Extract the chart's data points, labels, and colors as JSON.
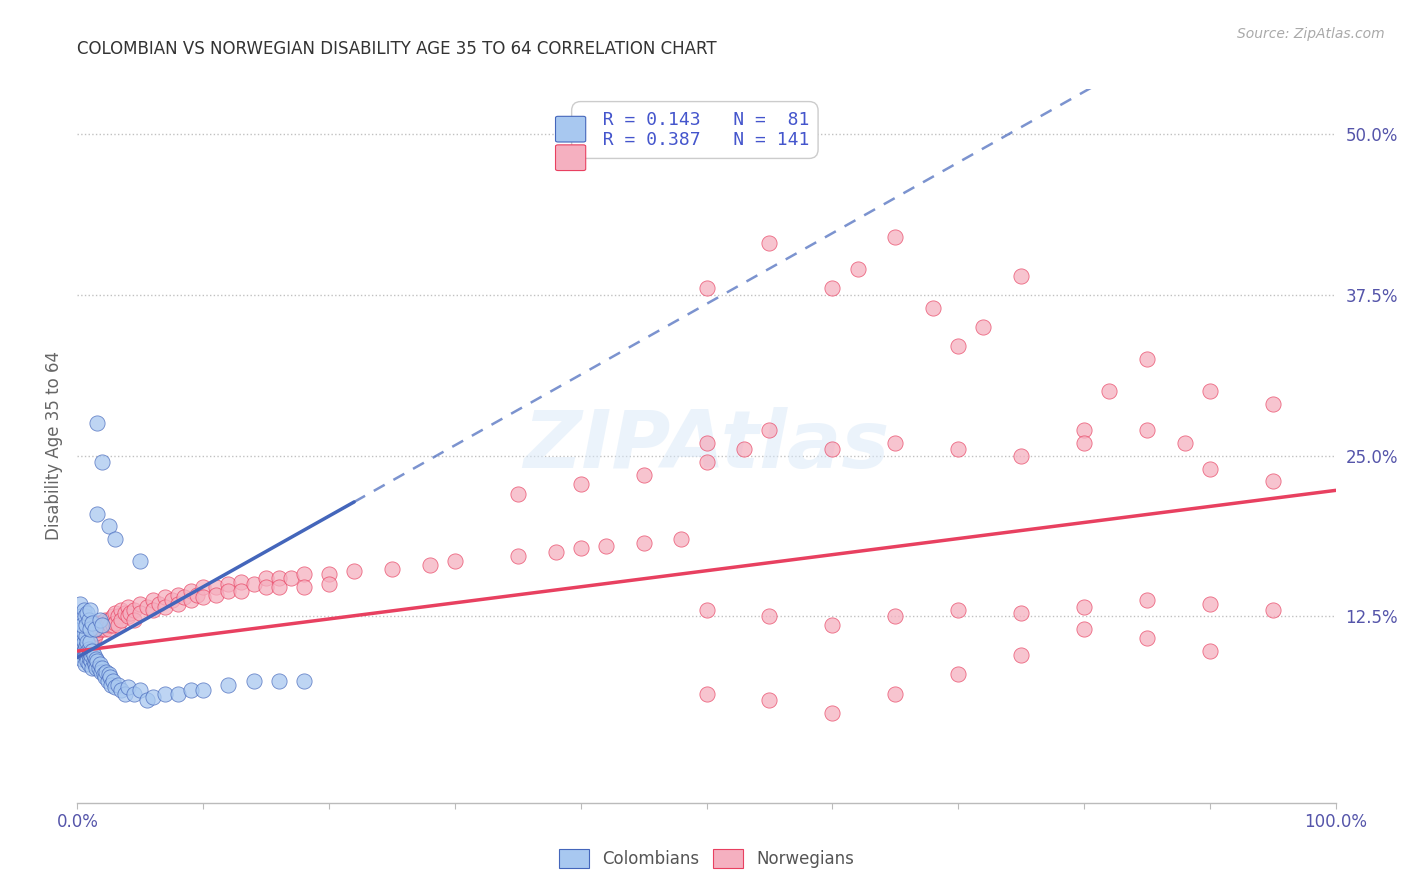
{
  "title": "COLOMBIAN VS NORWEGIAN DISABILITY AGE 35 TO 64 CORRELATION CHART",
  "source": "Source: ZipAtlas.com",
  "ylabel": "Disability Age 35 to 64",
  "yticks_labels": [
    "12.5%",
    "25.0%",
    "37.5%",
    "50.0%"
  ],
  "ytick_vals": [
    0.125,
    0.25,
    0.375,
    0.5
  ],
  "xlim": [
    0.0,
    1.0
  ],
  "ylim": [
    -0.02,
    0.535
  ],
  "colombian_color": "#A8C8F0",
  "norwegian_color": "#F5B0C0",
  "trendline_col_color": "#4466BB",
  "trendline_nor_color": "#E84060",
  "background_color": "#FFFFFF",
  "watermark": "ZIPAtlas",
  "colombian_points": [
    [
      0.001,
      0.115
    ],
    [
      0.002,
      0.12
    ],
    [
      0.002,
      0.105
    ],
    [
      0.003,
      0.11
    ],
    [
      0.003,
      0.095
    ],
    [
      0.003,
      0.115
    ],
    [
      0.004,
      0.1
    ],
    [
      0.004,
      0.108
    ],
    [
      0.004,
      0.092
    ],
    [
      0.005,
      0.098
    ],
    [
      0.005,
      0.105
    ],
    [
      0.005,
      0.112
    ],
    [
      0.006,
      0.095
    ],
    [
      0.006,
      0.1
    ],
    [
      0.006,
      0.088
    ],
    [
      0.007,
      0.102
    ],
    [
      0.007,
      0.095
    ],
    [
      0.007,
      0.11
    ],
    [
      0.008,
      0.098
    ],
    [
      0.008,
      0.09
    ],
    [
      0.008,
      0.105
    ],
    [
      0.009,
      0.095
    ],
    [
      0.009,
      0.1
    ],
    [
      0.009,
      0.088
    ],
    [
      0.01,
      0.092
    ],
    [
      0.01,
      0.098
    ],
    [
      0.01,
      0.105
    ],
    [
      0.011,
      0.09
    ],
    [
      0.011,
      0.095
    ],
    [
      0.012,
      0.098
    ],
    [
      0.012,
      0.085
    ],
    [
      0.013,
      0.09
    ],
    [
      0.013,
      0.095
    ],
    [
      0.014,
      0.088
    ],
    [
      0.015,
      0.092
    ],
    [
      0.015,
      0.085
    ],
    [
      0.016,
      0.09
    ],
    [
      0.017,
      0.085
    ],
    [
      0.018,
      0.088
    ],
    [
      0.019,
      0.082
    ],
    [
      0.02,
      0.085
    ],
    [
      0.021,
      0.08
    ],
    [
      0.022,
      0.078
    ],
    [
      0.023,
      0.082
    ],
    [
      0.024,
      0.075
    ],
    [
      0.025,
      0.08
    ],
    [
      0.026,
      0.078
    ],
    [
      0.027,
      0.072
    ],
    [
      0.028,
      0.075
    ],
    [
      0.03,
      0.07
    ],
    [
      0.032,
      0.072
    ],
    [
      0.035,
      0.068
    ],
    [
      0.038,
      0.065
    ],
    [
      0.04,
      0.07
    ],
    [
      0.045,
      0.065
    ],
    [
      0.05,
      0.068
    ],
    [
      0.055,
      0.06
    ],
    [
      0.06,
      0.062
    ],
    [
      0.07,
      0.065
    ],
    [
      0.08,
      0.065
    ],
    [
      0.09,
      0.068
    ],
    [
      0.1,
      0.068
    ],
    [
      0.12,
      0.072
    ],
    [
      0.14,
      0.075
    ],
    [
      0.16,
      0.075
    ],
    [
      0.18,
      0.075
    ],
    [
      0.002,
      0.135
    ],
    [
      0.003,
      0.125
    ],
    [
      0.004,
      0.118
    ],
    [
      0.005,
      0.13
    ],
    [
      0.006,
      0.125
    ],
    [
      0.007,
      0.118
    ],
    [
      0.008,
      0.128
    ],
    [
      0.009,
      0.122
    ],
    [
      0.01,
      0.115
    ],
    [
      0.01,
      0.13
    ],
    [
      0.012,
      0.12
    ],
    [
      0.014,
      0.115
    ],
    [
      0.018,
      0.122
    ],
    [
      0.02,
      0.118
    ],
    [
      0.016,
      0.275
    ],
    [
      0.02,
      0.245
    ],
    [
      0.016,
      0.205
    ],
    [
      0.025,
      0.195
    ],
    [
      0.03,
      0.185
    ],
    [
      0.05,
      0.168
    ]
  ],
  "norwegian_points": [
    [
      0.001,
      0.12
    ],
    [
      0.002,
      0.115
    ],
    [
      0.002,
      0.108
    ],
    [
      0.003,
      0.118
    ],
    [
      0.003,
      0.11
    ],
    [
      0.004,
      0.112
    ],
    [
      0.004,
      0.105
    ],
    [
      0.005,
      0.115
    ],
    [
      0.005,
      0.108
    ],
    [
      0.006,
      0.112
    ],
    [
      0.006,
      0.118
    ],
    [
      0.007,
      0.11
    ],
    [
      0.007,
      0.115
    ],
    [
      0.008,
      0.108
    ],
    [
      0.008,
      0.115
    ],
    [
      0.009,
      0.112
    ],
    [
      0.009,
      0.118
    ],
    [
      0.01,
      0.115
    ],
    [
      0.01,
      0.108
    ],
    [
      0.011,
      0.112
    ],
    [
      0.011,
      0.118
    ],
    [
      0.012,
      0.115
    ],
    [
      0.012,
      0.108
    ],
    [
      0.013,
      0.112
    ],
    [
      0.013,
      0.118
    ],
    [
      0.014,
      0.115
    ],
    [
      0.014,
      0.11
    ],
    [
      0.015,
      0.118
    ],
    [
      0.015,
      0.112
    ],
    [
      0.016,
      0.12
    ],
    [
      0.016,
      0.115
    ],
    [
      0.017,
      0.118
    ],
    [
      0.018,
      0.12
    ],
    [
      0.018,
      0.115
    ],
    [
      0.019,
      0.118
    ],
    [
      0.02,
      0.12
    ],
    [
      0.02,
      0.115
    ],
    [
      0.021,
      0.118
    ],
    [
      0.022,
      0.122
    ],
    [
      0.022,
      0.115
    ],
    [
      0.023,
      0.118
    ],
    [
      0.024,
      0.12
    ],
    [
      0.025,
      0.122
    ],
    [
      0.025,
      0.115
    ],
    [
      0.026,
      0.118
    ],
    [
      0.028,
      0.125
    ],
    [
      0.028,
      0.118
    ],
    [
      0.03,
      0.128
    ],
    [
      0.03,
      0.12
    ],
    [
      0.032,
      0.125
    ],
    [
      0.032,
      0.118
    ],
    [
      0.035,
      0.13
    ],
    [
      0.035,
      0.122
    ],
    [
      0.038,
      0.128
    ],
    [
      0.04,
      0.132
    ],
    [
      0.04,
      0.125
    ],
    [
      0.042,
      0.128
    ],
    [
      0.045,
      0.13
    ],
    [
      0.045,
      0.122
    ],
    [
      0.05,
      0.135
    ],
    [
      0.05,
      0.128
    ],
    [
      0.055,
      0.132
    ],
    [
      0.06,
      0.138
    ],
    [
      0.06,
      0.13
    ],
    [
      0.065,
      0.135
    ],
    [
      0.07,
      0.14
    ],
    [
      0.07,
      0.132
    ],
    [
      0.075,
      0.138
    ],
    [
      0.08,
      0.142
    ],
    [
      0.08,
      0.135
    ],
    [
      0.085,
      0.14
    ],
    [
      0.09,
      0.145
    ],
    [
      0.09,
      0.138
    ],
    [
      0.095,
      0.142
    ],
    [
      0.1,
      0.148
    ],
    [
      0.1,
      0.14
    ],
    [
      0.11,
      0.148
    ],
    [
      0.11,
      0.142
    ],
    [
      0.12,
      0.15
    ],
    [
      0.12,
      0.145
    ],
    [
      0.13,
      0.152
    ],
    [
      0.13,
      0.145
    ],
    [
      0.14,
      0.15
    ],
    [
      0.15,
      0.155
    ],
    [
      0.15,
      0.148
    ],
    [
      0.16,
      0.155
    ],
    [
      0.16,
      0.148
    ],
    [
      0.17,
      0.155
    ],
    [
      0.18,
      0.158
    ],
    [
      0.18,
      0.148
    ],
    [
      0.2,
      0.158
    ],
    [
      0.2,
      0.15
    ],
    [
      0.22,
      0.16
    ],
    [
      0.25,
      0.162
    ],
    [
      0.28,
      0.165
    ],
    [
      0.3,
      0.168
    ],
    [
      0.35,
      0.172
    ],
    [
      0.38,
      0.175
    ],
    [
      0.4,
      0.178
    ],
    [
      0.42,
      0.18
    ],
    [
      0.45,
      0.182
    ],
    [
      0.48,
      0.185
    ],
    [
      0.35,
      0.22
    ],
    [
      0.4,
      0.228
    ],
    [
      0.45,
      0.235
    ],
    [
      0.5,
      0.245
    ],
    [
      0.5,
      0.26
    ],
    [
      0.53,
      0.255
    ],
    [
      0.55,
      0.27
    ],
    [
      0.5,
      0.38
    ],
    [
      0.55,
      0.415
    ],
    [
      0.6,
      0.38
    ],
    [
      0.62,
      0.395
    ],
    [
      0.65,
      0.42
    ],
    [
      0.68,
      0.365
    ],
    [
      0.7,
      0.335
    ],
    [
      0.72,
      0.35
    ],
    [
      0.75,
      0.39
    ],
    [
      0.8,
      0.27
    ],
    [
      0.82,
      0.3
    ],
    [
      0.85,
      0.325
    ],
    [
      0.88,
      0.26
    ],
    [
      0.9,
      0.3
    ],
    [
      0.95,
      0.29
    ],
    [
      0.6,
      0.255
    ],
    [
      0.65,
      0.26
    ],
    [
      0.7,
      0.255
    ],
    [
      0.75,
      0.25
    ],
    [
      0.8,
      0.26
    ],
    [
      0.85,
      0.27
    ],
    [
      0.9,
      0.24
    ],
    [
      0.95,
      0.23
    ],
    [
      0.5,
      0.13
    ],
    [
      0.55,
      0.125
    ],
    [
      0.6,
      0.118
    ],
    [
      0.65,
      0.125
    ],
    [
      0.7,
      0.13
    ],
    [
      0.75,
      0.128
    ],
    [
      0.8,
      0.132
    ],
    [
      0.85,
      0.138
    ],
    [
      0.9,
      0.135
    ],
    [
      0.95,
      0.13
    ],
    [
      0.5,
      0.065
    ],
    [
      0.55,
      0.06
    ],
    [
      0.6,
      0.05
    ],
    [
      0.65,
      0.065
    ],
    [
      0.7,
      0.08
    ],
    [
      0.75,
      0.095
    ],
    [
      0.8,
      0.115
    ],
    [
      0.85,
      0.108
    ],
    [
      0.9,
      0.098
    ]
  ]
}
